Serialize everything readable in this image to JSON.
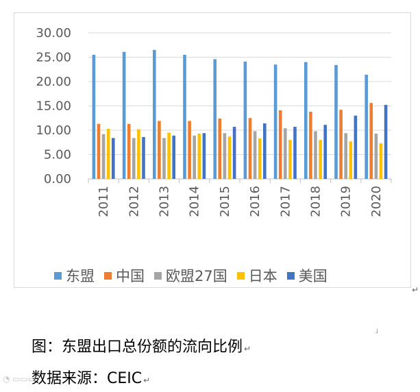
{
  "chart_data": {
    "type": "bar",
    "categories": [
      "2011",
      "2012",
      "2013",
      "2014",
      "2015",
      "2016",
      "2017",
      "2018",
      "2019",
      "2020"
    ],
    "series": [
      {
        "name": "东盟",
        "color": "#5b9bd5",
        "values": [
          25.5,
          26.1,
          26.5,
          25.5,
          24.6,
          24.1,
          23.5,
          24.0,
          23.4,
          21.4
        ]
      },
      {
        "name": "中国",
        "color": "#ed7d31",
        "values": [
          11.3,
          11.3,
          11.9,
          11.9,
          12.4,
          12.5,
          14.1,
          13.8,
          14.2,
          15.6
        ]
      },
      {
        "name": "欧盟27国",
        "color": "#a5a5a5",
        "values": [
          9.2,
          8.4,
          8.4,
          8.9,
          9.4,
          9.8,
          10.4,
          9.8,
          9.4,
          9.3
        ]
      },
      {
        "name": "日本",
        "color": "#ffc000",
        "values": [
          10.3,
          10.2,
          9.5,
          9.3,
          8.7,
          8.3,
          8.0,
          8.0,
          7.7,
          7.3
        ]
      },
      {
        "name": "美国",
        "color": "#4472c4",
        "values": [
          8.4,
          8.6,
          8.9,
          9.4,
          10.7,
          11.4,
          10.7,
          11.1,
          13.0,
          15.2
        ]
      }
    ],
    "y_ticks": [
      "0.00",
      "5.00",
      "10.00",
      "15.00",
      "20.00",
      "25.00",
      "30.00"
    ],
    "ylim": [
      0,
      30
    ],
    "grid": true,
    "legend_position": "bottom"
  },
  "caption": "图：东盟出口总份额的流向比例",
  "source": "数据来源：CEIC",
  "return_mark": "↵",
  "corner_mark": "˩"
}
